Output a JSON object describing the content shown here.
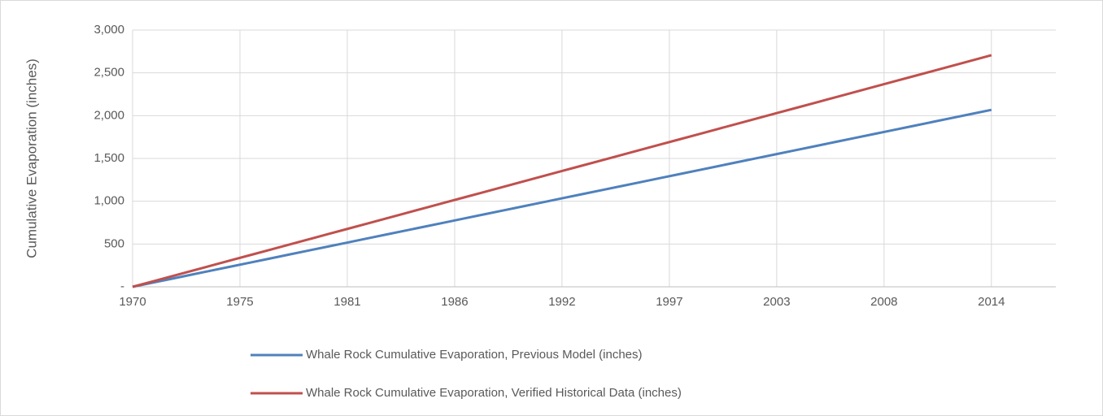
{
  "chart_data": {
    "type": "line",
    "y_label": "Cumulative Evaporation (inches)",
    "x": [
      1970,
      1971,
      1972,
      1973,
      1974,
      1975,
      1976,
      1977,
      1978,
      1979,
      1980,
      1981,
      1982,
      1983,
      1984,
      1985,
      1986,
      1987,
      1988,
      1989,
      1990,
      1991,
      1992,
      1993,
      1994,
      1995,
      1996,
      1997,
      1998,
      1999,
      2000,
      2001,
      2002,
      2003,
      2004,
      2005,
      2006,
      2007,
      2008,
      2009,
      2010,
      2011,
      2012,
      2013,
      2014
    ],
    "series": [
      {
        "name": "Whale Rock Cumulative Evaporation, Previous Model (inches)",
        "color": "#4f81bd",
        "values": [
          0,
          47,
          94,
          141,
          188,
          235,
          282,
          329,
          376,
          423,
          470,
          517,
          564,
          611,
          658,
          705,
          752,
          799,
          846,
          893,
          940,
          987,
          1034,
          1081,
          1128,
          1175,
          1222,
          1269,
          1316,
          1363,
          1410,
          1457,
          1504,
          1551,
          1598,
          1645,
          1692,
          1739,
          1786,
          1833,
          1880,
          1927,
          1974,
          2021,
          2068
        ]
      },
      {
        "name": "Whale Rock Cumulative Evaporation, Verified Historical Data (inches)",
        "color": "#c0504d",
        "values": [
          0,
          61.5,
          123,
          184.5,
          246,
          307.5,
          369,
          430.5,
          492,
          553.5,
          615,
          676.5,
          738,
          799.5,
          861,
          922.5,
          984,
          1045.5,
          1107,
          1168.5,
          1230,
          1291.5,
          1353,
          1414.5,
          1476,
          1537.5,
          1599,
          1660.5,
          1722,
          1783.5,
          1845,
          1906.5,
          1968,
          2029.5,
          2091,
          2152.5,
          2214,
          2275.5,
          2337,
          2398.5,
          2460,
          2521.5,
          2583,
          2644.5,
          2706
        ]
      }
    ],
    "xlim": [
      1970,
      2017.3
    ],
    "xticks": [
      1970,
      {
        "value": 1975.5,
        "label": "1975"
      },
      1981,
      {
        "value": 1986.5,
        "label": "1986"
      },
      1992,
      {
        "value": 1997.5,
        "label": "1997"
      },
      2003,
      {
        "value": 2008.5,
        "label": "2008"
      },
      2014
    ],
    "ylim": [
      0,
      3000
    ],
    "yticks": [
      {
        "value": 0,
        "label": "-"
      },
      500,
      {
        "value": 1000,
        "label": "1,000"
      },
      {
        "value": 1500,
        "label": "1,500"
      },
      {
        "value": 2000,
        "label": "2,000"
      },
      {
        "value": 2500,
        "label": "2,500"
      },
      {
        "value": 3000,
        "label": "3,000"
      }
    ],
    "grid": true,
    "legend": "bottom"
  }
}
